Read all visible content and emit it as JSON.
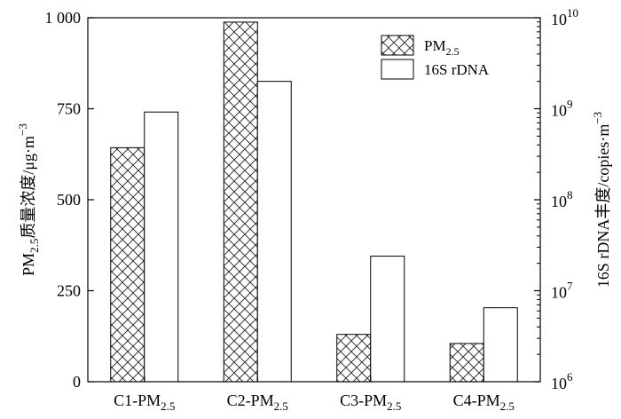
{
  "chart_data": {
    "type": "bar",
    "categories": [
      {
        "main": "C1-PM",
        "sub": "2.5"
      },
      {
        "main": "C2-PM",
        "sub": "2.5"
      },
      {
        "main": "C3-PM",
        "sub": "2.5"
      },
      {
        "main": "C4-PM",
        "sub": "2.5"
      }
    ],
    "series": [
      {
        "name_main": "PM",
        "name_sub": "2.5",
        "axis": "left",
        "pattern": "crosshatch",
        "values": [
          643,
          988,
          130,
          105
        ]
      },
      {
        "name_main": "16S rDNA",
        "name_sub": "",
        "axis": "right",
        "pattern": "none",
        "values": [
          920000000.0,
          2000000000.0,
          24000000.0,
          6500000.0
        ]
      }
    ],
    "left_axis": {
      "label_main": "PM",
      "label_sub": "2.5",
      "label_rest": "质量浓度/μg·m",
      "label_sup": "−3",
      "ylim": [
        0,
        1000
      ],
      "ticks": [
        0,
        250,
        500,
        750,
        1000
      ],
      "tick_labels": [
        "0",
        "250",
        "500",
        "750",
        "1 000"
      ]
    },
    "right_axis": {
      "label_main": "16S rDNA丰度/copies·m",
      "label_sup": "−3",
      "scale": "log",
      "ylim": [
        1000000.0,
        10000000000.0
      ],
      "ticks": [
        1000000.0,
        10000000.0,
        100000000.0,
        1000000000.0,
        10000000000.0
      ],
      "tick_base": "10",
      "tick_exponents": [
        "6",
        "7",
        "8",
        "9",
        "10"
      ]
    },
    "legend": {
      "position": "top-right"
    },
    "grid": false
  }
}
